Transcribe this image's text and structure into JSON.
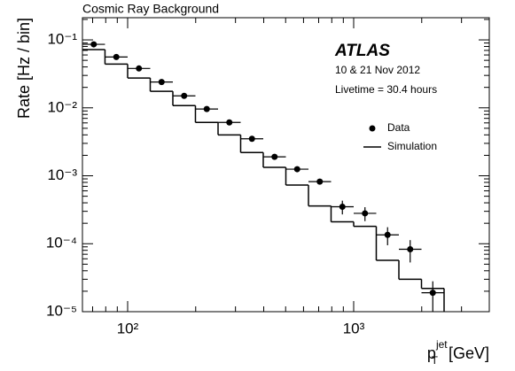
{
  "chart_data": {
    "type": "scatter",
    "title": "Cosmic Ray Background",
    "annotations": [
      "ATLAS",
      "10 & 21 Nov 2012",
      "Livetime = 30.4 hours"
    ],
    "ylabel": "Rate [Hz / bin]",
    "xlabel": {
      "base": "p",
      "sub": "T",
      "sup": "jet",
      "unit": "[GeV]"
    },
    "xscale": "log",
    "yscale": "log",
    "xlim": [
      63.1,
      3981
    ],
    "ylim": [
      1e-05,
      0.212
    ],
    "xticks": [
      {
        "value": 100,
        "label": "10²"
      },
      {
        "value": 1000,
        "label": "10³"
      }
    ],
    "xminorticks": [
      70,
      80,
      90,
      200,
      300,
      400,
      500,
      600,
      700,
      800,
      900,
      2000,
      3000
    ],
    "yticks": [
      {
        "value": 1e-05,
        "label": "10⁻⁵"
      },
      {
        "value": 0.0001,
        "label": "10⁻⁴"
      },
      {
        "value": 0.001,
        "label": "10⁻³"
      },
      {
        "value": 0.01,
        "label": "10⁻²"
      },
      {
        "value": 0.1,
        "label": "10⁻¹"
      }
    ],
    "yminorticks": [
      2e-05,
      3e-05,
      4e-05,
      5e-05,
      6e-05,
      7e-05,
      8e-05,
      9e-05,
      0.0002,
      0.0003,
      0.0004,
      0.0005,
      0.0006,
      0.0007,
      0.0008,
      0.0009,
      0.002,
      0.003,
      0.004,
      0.005,
      0.006,
      0.007,
      0.008,
      0.009,
      0.02,
      0.03,
      0.04,
      0.05,
      0.06,
      0.07,
      0.08,
      0.09,
      0.2
    ],
    "legend": "upper right",
    "series": [
      {
        "name": "Data",
        "type": "points",
        "color": "#000000",
        "x": [
          70.8,
          89.1,
          112.2,
          141.3,
          177.8,
          223.9,
          281.8,
          354.8,
          446.7,
          562.3,
          707.9,
          891.3,
          1122,
          1412.5,
          1778.3,
          2238.7
        ],
        "values": [
          0.086,
          0.056,
          0.038,
          0.024,
          0.015,
          0.0096,
          0.0061,
          0.0035,
          0.0019,
          0.00125,
          0.00082,
          0.00035,
          0.00028,
          0.000135,
          8.3e-05,
          1.9e-05
        ],
        "errors": [
          0.001,
          0.0008,
          0.0006,
          0.0004,
          0.0003,
          0.0002,
          0.00015,
          0.0001,
          6e-05,
          5e-05,
          4e-05,
          8e-05,
          6.5e-05,
          4e-05,
          3e-05,
          9e-06
        ]
      },
      {
        "name": "Simulation",
        "type": "step",
        "color": "#000000",
        "bins": [
          63.1,
          79.4,
          100,
          125.9,
          158.5,
          199.5,
          251.2,
          316.2,
          398.1,
          501.2,
          631,
          794.3,
          1000,
          1258.9,
          1584.9,
          1995.3,
          2511.9
        ],
        "values": [
          0.072,
          0.044,
          0.0275,
          0.0175,
          0.0108,
          0.0061,
          0.004,
          0.0022,
          0.00133,
          0.00073,
          0.00036,
          0.00021,
          0.00018,
          5.7e-05,
          3e-05,
          2.2e-05
        ]
      }
    ]
  }
}
